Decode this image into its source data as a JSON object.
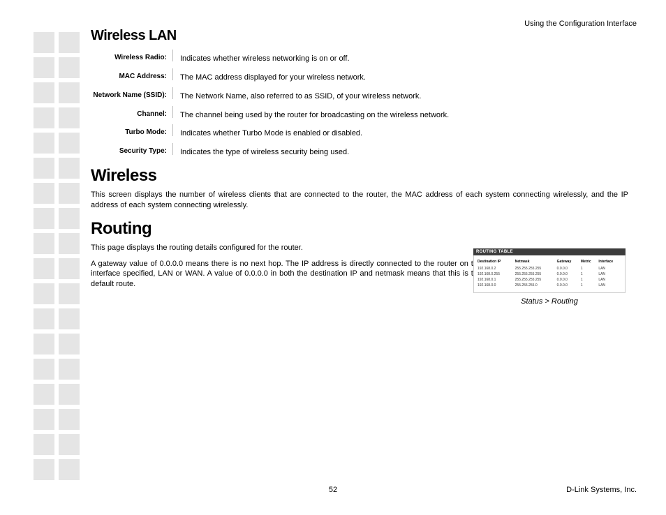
{
  "header_right": "Using the Configuration Interface",
  "wireless_lan": {
    "title": "Wireless LAN",
    "rows": [
      {
        "label": "Wireless Radio:",
        "value": "Indicates whether wireless networking is on or off."
      },
      {
        "label": "MAC Address:",
        "value": "The MAC address displayed for your wireless network."
      },
      {
        "label": "Network Name (SSID):",
        "value": "The Network Name, also referred to as SSID, of your wireless network."
      },
      {
        "label": "Channel:",
        "value": "The channel being used by the router for broadcasting on the wireless network."
      },
      {
        "label": "Turbo Mode:",
        "value": "Indicates whether Turbo Mode is enabled or disabled."
      },
      {
        "label": "Security Type:",
        "value": "Indicates the type of wireless security being used."
      }
    ]
  },
  "wireless": {
    "title": "Wireless",
    "para": "This screen displays the number of wireless clients that are connected to the router, the MAC address of each system connecting wirelessly, and the IP address of each system connecting wirelessly."
  },
  "routing": {
    "title": "Routing",
    "para1": "This page displays the routing details configured for the router.",
    "para2": "A gateway value of 0.0.0.0 means there is no next hop. The IP address is directly connected to the router on the interface specified, LAN or WAN. A value of 0.0.0.0 in both the destination IP and netmask means that this is the default route."
  },
  "routing_table": {
    "header": "ROUTING TABLE",
    "columns": [
      "Destination IP",
      "Netmask",
      "Gateway",
      "Metric",
      "Interface"
    ],
    "rows": [
      [
        "192.168.0.2",
        "255.255.255.255",
        "0.0.0.0",
        "1",
        "LAN"
      ],
      [
        "192.168.0.255",
        "255.255.255.255",
        "0.0.0.0",
        "1",
        "LAN"
      ],
      [
        "192.168.0.1",
        "255.255.255.255",
        "0.0.0.0",
        "1",
        "LAN"
      ],
      [
        "192.168.0.0",
        "255.255.255.0",
        "0.0.0.0",
        "1",
        "LAN"
      ]
    ],
    "caption": "Status > Routing"
  },
  "footer": {
    "page": "52",
    "company": "D-Link Systems, Inc."
  }
}
